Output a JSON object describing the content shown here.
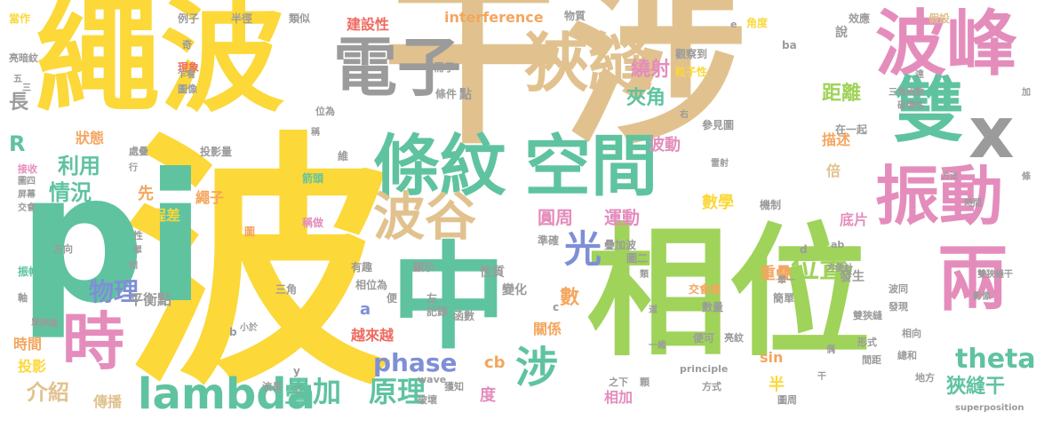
{
  "palette": {
    "tan": "#e1c28f",
    "yellow": "#fcd839",
    "green": "#9fd35a",
    "teal": "#5fc3a0",
    "pink": "#e48dbc",
    "orange": "#f4a65e",
    "blue": "#7f8fd6",
    "gray": "#9b9b9b",
    "red": "#ef6b61"
  },
  "words": [
    {
      "text": "干涉",
      "color": "tan",
      "weight": 160
    },
    {
      "text": "波",
      "color": "yellow",
      "weight": 155
    },
    {
      "text": "繩波",
      "color": "yellow",
      "weight": 110
    },
    {
      "text": "相位",
      "color": "green",
      "weight": 110
    },
    {
      "text": "pi",
      "color": "teal",
      "weight": 140
    },
    {
      "text": "中",
      "color": "teal",
      "weight": 100
    },
    {
      "text": "波峰",
      "color": "pink",
      "weight": 72
    },
    {
      "text": "電子",
      "color": "gray",
      "weight": 58
    },
    {
      "text": "狹縫",
      "color": "tan",
      "weight": 58
    },
    {
      "text": "雙",
      "color": "teal",
      "weight": 62
    },
    {
      "text": "x",
      "color": "gray",
      "weight": 68
    },
    {
      "text": "條紋",
      "color": "teal",
      "weight": 58
    },
    {
      "text": "空間",
      "color": "teal",
      "weight": 58
    },
    {
      "text": "振動",
      "color": "pink",
      "weight": 62
    },
    {
      "text": "兩",
      "color": "pink",
      "weight": 60
    },
    {
      "text": "時",
      "color": "pink",
      "weight": 58
    },
    {
      "text": "波谷",
      "color": "tan",
      "weight": 48
    },
    {
      "text": "光",
      "color": "blue",
      "weight": 38
    },
    {
      "text": "涉",
      "color": "teal",
      "weight": 40
    },
    {
      "text": "lambda",
      "color": "teal",
      "weight": 42
    },
    {
      "text": "疊加",
      "color": "teal",
      "weight": 30
    },
    {
      "text": "原理",
      "color": "teal",
      "weight": 30
    },
    {
      "text": "位置",
      "color": "green",
      "weight": 30
    },
    {
      "text": "theta",
      "color": "teal",
      "weight": 26
    },
    {
      "text": "狹縫干",
      "color": "teal",
      "weight": 20
    },
    {
      "text": "物理",
      "color": "blue",
      "weight": 26
    },
    {
      "text": "phase",
      "color": "blue",
      "weight": 22
    },
    {
      "text": "利用",
      "color": "teal",
      "weight": 20
    },
    {
      "text": "情況",
      "color": "teal",
      "weight": 20
    },
    {
      "text": "介紹",
      "color": "tan",
      "weight": 22
    },
    {
      "text": "R",
      "color": "teal",
      "weight": 20
    },
    {
      "text": "長",
      "color": "gray",
      "weight": 18
    },
    {
      "text": "狀態",
      "color": "orange",
      "weight": 14
    },
    {
      "text": "夾角",
      "color": "teal",
      "weight": 18
    },
    {
      "text": "距離",
      "color": "green",
      "weight": 18
    },
    {
      "text": "繞射",
      "color": "pink",
      "weight": 18
    },
    {
      "text": "描述",
      "color": "orange",
      "weight": 14
    },
    {
      "text": "波動",
      "color": "pink",
      "weight": 16
    },
    {
      "text": "圓周",
      "color": "pink",
      "weight": 18
    },
    {
      "text": "運動",
      "color": "pink",
      "weight": 18
    },
    {
      "text": "數學",
      "color": "yellow",
      "weight": 16
    },
    {
      "text": "關係",
      "color": "orange",
      "weight": 14
    },
    {
      "text": "數",
      "color": "orange",
      "weight": 16
    },
    {
      "text": "重疊",
      "color": "orange",
      "weight": 14
    },
    {
      "text": "發生",
      "color": "gray",
      "weight": 13
    },
    {
      "text": "倍",
      "color": "tan",
      "weight": 14
    },
    {
      "text": "底片",
      "color": "pink",
      "weight": 14
    },
    {
      "text": "性質",
      "color": "gray",
      "weight": 12
    },
    {
      "text": "變化",
      "color": "gray",
      "weight": 12
    },
    {
      "text": "越來越",
      "color": "red",
      "weight": 12
    },
    {
      "text": "a",
      "color": "blue",
      "weight": 14
    },
    {
      "text": "cb",
      "color": "orange",
      "weight": 14
    },
    {
      "text": "sin",
      "color": "orange",
      "weight": 13
    },
    {
      "text": "半",
      "color": "yellow",
      "weight": 14
    },
    {
      "text": "度",
      "color": "pink",
      "weight": 14
    },
    {
      "text": "相加",
      "color": "pink",
      "weight": 13
    },
    {
      "text": "時間",
      "color": "orange",
      "weight": 13
    },
    {
      "text": "投影",
      "color": "yellow",
      "weight": 13
    },
    {
      "text": "傳播",
      "color": "tan",
      "weight": 13
    },
    {
      "text": "平衡點",
      "color": "gray",
      "weight": 12
    },
    {
      "text": "光程差",
      "color": "yellow",
      "weight": 12
    },
    {
      "text": "先",
      "color": "orange",
      "weight": 13
    },
    {
      "text": "繩子",
      "color": "orange",
      "weight": 12
    },
    {
      "text": "建設性",
      "color": "red",
      "weight": 12
    },
    {
      "text": "interference",
      "color": "orange",
      "weight": 11
    },
    {
      "text": "物質",
      "color": "gray",
      "weight": 9
    },
    {
      "text": "觀察到",
      "color": "gray",
      "weight": 9
    },
    {
      "text": "粒子性",
      "color": "yellow",
      "weight": 9
    },
    {
      "text": "角度",
      "color": "yellow",
      "weight": 9
    },
    {
      "text": "效應",
      "color": "gray",
      "weight": 9
    },
    {
      "text": "假設",
      "color": "tan",
      "weight": 9
    },
    {
      "text": "當作",
      "color": "yellow",
      "weight": 9
    },
    {
      "text": "例子",
      "color": "gray",
      "weight": 9
    },
    {
      "text": "半徑",
      "color": "gray",
      "weight": 9
    },
    {
      "text": "類似",
      "color": "gray",
      "weight": 9
    },
    {
      "text": "亮暗紋",
      "color": "gray",
      "weight": 8
    },
    {
      "text": "現象",
      "color": "red",
      "weight": 9
    },
    {
      "text": "圖像",
      "color": "gray",
      "weight": 8
    },
    {
      "text": "位為",
      "color": "gray",
      "weight": 8
    },
    {
      "text": "處疊",
      "color": "gray",
      "weight": 8
    },
    {
      "text": "投影量",
      "color": "gray",
      "weight": 8
    },
    {
      "text": "接收",
      "color": "pink",
      "weight": 8
    },
    {
      "text": "圖四",
      "color": "gray",
      "weight": 8
    },
    {
      "text": "屏幕",
      "color": "gray",
      "weight": 8
    },
    {
      "text": "交會",
      "color": "gray",
      "weight": 8
    },
    {
      "text": "箭頭",
      "color": "teal",
      "weight": 8
    },
    {
      "text": "稱做",
      "color": "pink",
      "weight": 8
    },
    {
      "text": "圖",
      "color": "orange",
      "weight": 9
    },
    {
      "text": "方向",
      "color": "gray",
      "weight": 8
    },
    {
      "text": "振幅",
      "color": "teal",
      "weight": 8
    },
    {
      "text": "軸",
      "color": "gray",
      "weight": 8
    },
    {
      "text": "單狹縫",
      "color": "gray",
      "weight": 8
    },
    {
      "text": "小於",
      "color": "gray",
      "weight": 8
    },
    {
      "text": "三角",
      "color": "gray",
      "weight": 8
    },
    {
      "text": "有趣",
      "color": "gray",
      "weight": 8
    },
    {
      "text": "顯示",
      "color": "gray",
      "weight": 8
    },
    {
      "text": "相位為",
      "color": "gray",
      "weight": 8
    },
    {
      "text": "左",
      "color": "gray",
      "weight": 8
    },
    {
      "text": "記錄",
      "color": "gray",
      "weight": 8
    },
    {
      "text": "便",
      "color": "gray",
      "weight": 8
    },
    {
      "text": "函數",
      "color": "gray",
      "weight": 8
    },
    {
      "text": "wave",
      "color": "gray",
      "weight": 8
    },
    {
      "text": "波長",
      "color": "gray",
      "weight": 8
    },
    {
      "text": "獲知",
      "color": "gray",
      "weight": 8
    },
    {
      "text": "破壞",
      "color": "gray",
      "weight": 8
    },
    {
      "text": "之下",
      "color": "gray",
      "weight": 8
    },
    {
      "text": "顆",
      "color": "gray",
      "weight": 8
    },
    {
      "text": "準確",
      "color": "gray",
      "weight": 8
    },
    {
      "text": "疊加波",
      "color": "gray",
      "weight": 8
    },
    {
      "text": "圖二",
      "color": "gray",
      "weight": 8
    },
    {
      "text": "交會處",
      "color": "orange",
      "weight": 8
    },
    {
      "text": "數量",
      "color": "gray",
      "weight": 8
    },
    {
      "text": "簡單",
      "color": "gray",
      "weight": 8
    },
    {
      "text": "便可",
      "color": "gray",
      "weight": 8
    },
    {
      "text": "principle",
      "color": "gray",
      "weight": 8
    },
    {
      "text": "方式",
      "color": "gray",
      "weight": 8
    },
    {
      "text": "圖周",
      "color": "gray",
      "weight": 8
    },
    {
      "text": "亮紋",
      "color": "gray",
      "weight": 8
    },
    {
      "text": "形式",
      "color": "gray",
      "weight": 8
    },
    {
      "text": "間距",
      "color": "gray",
      "weight": 8
    },
    {
      "text": "相向",
      "color": "gray",
      "weight": 8
    },
    {
      "text": "發現",
      "color": "gray",
      "weight": 8
    },
    {
      "text": "雙狹縫",
      "color": "gray",
      "weight": 8
    },
    {
      "text": "總和",
      "color": "gray",
      "weight": 8
    },
    {
      "text": "地方",
      "color": "gray",
      "weight": 8
    },
    {
      "text": "superposition",
      "color": "gray",
      "weight": 8
    },
    {
      "text": "波同",
      "color": "gray",
      "weight": 8
    },
    {
      "text": "方便計",
      "color": "gray",
      "weight": 8
    },
    {
      "text": "雙狹縫干",
      "color": "gray",
      "weight": 8
    },
    {
      "text": "影像",
      "color": "gray",
      "weight": 8
    },
    {
      "text": "三角函數",
      "color": "gray",
      "weight": 8
    },
    {
      "text": "破壞性",
      "color": "gray",
      "weight": 8
    },
    {
      "text": "機制",
      "color": "gray",
      "weight": 8
    },
    {
      "text": "參見圖",
      "color": "gray",
      "weight": 8
    },
    {
      "text": "在一起",
      "color": "gray",
      "weight": 8
    },
    {
      "text": "時間",
      "color": "gray",
      "weight": 8
    },
    {
      "text": "需子",
      "color": "gray",
      "weight": 8
    },
    {
      "text": "條件",
      "color": "gray",
      "weight": 8
    },
    {
      "text": "點",
      "color": "gray",
      "weight": 8
    },
    {
      "text": "說",
      "color": "gray",
      "weight": 8
    },
    {
      "text": "ba",
      "color": "gray",
      "weight": 8
    },
    {
      "text": "e",
      "color": "gray",
      "weight": 8
    },
    {
      "text": "d",
      "color": "gray",
      "weight": 8
    },
    {
      "text": "ab",
      "color": "gray",
      "weight": 8
    },
    {
      "text": "b",
      "color": "gray",
      "weight": 8
    },
    {
      "text": "c",
      "color": "gray",
      "weight": 8
    },
    {
      "text": "y",
      "color": "gray",
      "weight": 8
    },
    {
      "text": "奇",
      "color": "gray",
      "weight": 8
    },
    {
      "text": "乍看",
      "color": "gray",
      "weight": 8
    },
    {
      "text": "五",
      "color": "gray",
      "weight": 8
    },
    {
      "text": "三",
      "color": "gray",
      "weight": 8
    },
    {
      "text": "稱",
      "color": "gray",
      "weight": 8
    },
    {
      "text": "維",
      "color": "gray",
      "weight": 8
    },
    {
      "text": "性",
      "color": "gray",
      "weight": 8
    },
    {
      "text": "單",
      "color": "gray",
      "weight": 8
    },
    {
      "text": "相",
      "color": "gray",
      "weight": 8
    },
    {
      "text": "行",
      "color": "gray",
      "weight": 8
    },
    {
      "text": "類",
      "color": "gray",
      "weight": 8
    },
    {
      "text": "道",
      "color": "gray",
      "weight": 8
    },
    {
      "text": "一維",
      "color": "gray",
      "weight": 8
    },
    {
      "text": "偶",
      "color": "gray",
      "weight": 8
    },
    {
      "text": "干",
      "color": "gray",
      "weight": 8
    },
    {
      "text": "右",
      "color": "gray",
      "weight": 8
    },
    {
      "text": "雷射",
      "color": "gray",
      "weight": 8
    },
    {
      "text": "方法",
      "color": "gray",
      "weight": 8
    },
    {
      "text": "條",
      "color": "gray",
      "weight": 8
    },
    {
      "text": "遠",
      "color": "gray",
      "weight": 8
    },
    {
      "text": "加",
      "color": "gray",
      "weight": 8
    },
    {
      "text": "單一",
      "color": "gray",
      "weight": 8
    },
    {
      "text": "二",
      "color": "gray",
      "weight": 8
    }
  ]
}
